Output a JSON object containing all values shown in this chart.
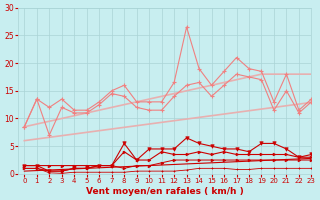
{
  "x": [
    0,
    1,
    2,
    3,
    4,
    5,
    6,
    7,
    8,
    9,
    10,
    11,
    12,
    13,
    14,
    15,
    16,
    17,
    18,
    19,
    20,
    21,
    22,
    23
  ],
  "line_upper_jagged": [
    8.5,
    13.5,
    12,
    13.5,
    11.5,
    11.5,
    13,
    15,
    16,
    13,
    13,
    13,
    16.5,
    26.5,
    19,
    16,
    18.5,
    21,
    19,
    18.5,
    13,
    18,
    11.5,
    13.5
  ],
  "line_upper_trend": [
    8.5,
    9.0,
    9.5,
    10.0,
    10.5,
    11.0,
    11.5,
    12.0,
    12.5,
    13.0,
    13.5,
    14.0,
    14.5,
    15.0,
    15.5,
    16.0,
    16.5,
    17.0,
    17.5,
    18.0,
    18.0,
    18.0,
    18.0,
    18.0
  ],
  "line_mid_jagged": [
    8.5,
    13.5,
    7.0,
    12.0,
    11.0,
    11.0,
    12.5,
    14.5,
    14.0,
    12.0,
    11.5,
    11.5,
    14.0,
    16.0,
    16.5,
    14.0,
    16.0,
    18.0,
    17.5,
    17.0,
    11.5,
    15.0,
    11.0,
    13.0
  ],
  "line_mid_trend": [
    6.0,
    6.3,
    6.6,
    6.9,
    7.2,
    7.5,
    7.8,
    8.1,
    8.4,
    8.7,
    9.0,
    9.3,
    9.6,
    9.9,
    10.2,
    10.5,
    10.8,
    11.1,
    11.4,
    11.7,
    12.0,
    12.3,
    12.6,
    12.9
  ],
  "line_dark_upper": [
    1.5,
    1.5,
    0.5,
    0.5,
    1.0,
    1.0,
    1.5,
    1.5,
    5.5,
    2.5,
    4.5,
    4.5,
    4.5,
    6.5,
    5.5,
    5.0,
    4.5,
    4.5,
    4.0,
    5.5,
    5.5,
    4.5,
    3.0,
    3.5
  ],
  "line_dark_mid": [
    1.5,
    1.5,
    1.5,
    1.5,
    1.5,
    1.5,
    1.5,
    1.5,
    4.0,
    2.5,
    2.5,
    4.0,
    3.5,
    3.5,
    4.0,
    3.5,
    4.0,
    3.5,
    3.5,
    3.5,
    3.5,
    3.5,
    3.0,
    3.0
  ],
  "line_dark_low": [
    1.0,
    1.0,
    0.5,
    0.5,
    1.0,
    1.0,
    1.5,
    1.5,
    1.0,
    1.5,
    1.5,
    2.0,
    2.5,
    2.5,
    2.5,
    2.5,
    2.5,
    2.5,
    2.5,
    2.5,
    2.5,
    2.5,
    2.5,
    2.5
  ],
  "line_dark_trend": [
    0.5,
    0.6,
    0.7,
    0.8,
    0.9,
    1.0,
    1.1,
    1.2,
    1.3,
    1.4,
    1.5,
    1.6,
    1.7,
    1.8,
    1.9,
    2.0,
    2.1,
    2.2,
    2.3,
    2.4,
    2.5,
    2.6,
    2.7,
    2.8
  ],
  "line_dark_flat": [
    1.0,
    1.0,
    0.2,
    0.1,
    0.3,
    0.3,
    0.3,
    0.3,
    0.3,
    0.5,
    0.5,
    0.5,
    0.5,
    0.7,
    1.0,
    1.0,
    1.0,
    0.8,
    0.8,
    1.0,
    1.0,
    1.0,
    1.0,
    1.0
  ],
  "bg_color": "#c8eef0",
  "grid_color": "#aad4d6",
  "line_color_light": "#f08080",
  "line_color_verylite": "#e8b0b0",
  "line_color_dark": "#cc0000",
  "xlabel": "Vent moyen/en rafales ( km/h )",
  "xlabel_color": "#cc0000",
  "tick_color": "#cc0000",
  "ylim": [
    0,
    30
  ],
  "xlim": [
    -0.5,
    23
  ],
  "yticks": [
    0,
    5,
    10,
    15,
    20,
    25,
    30
  ],
  "xticks": [
    0,
    1,
    2,
    3,
    4,
    5,
    6,
    7,
    8,
    9,
    10,
    11,
    12,
    13,
    14,
    15,
    16,
    17,
    18,
    19,
    20,
    21,
    22,
    23
  ]
}
